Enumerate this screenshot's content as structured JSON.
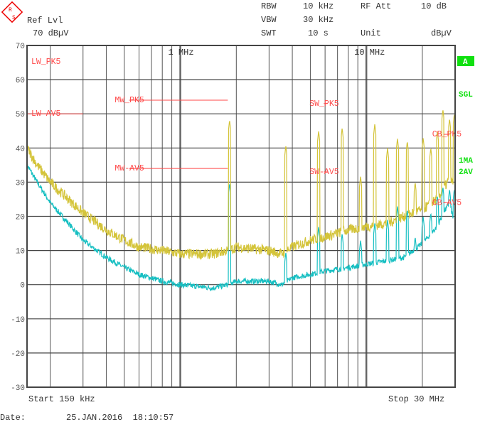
{
  "header": {
    "ref_lvl_label": "Ref Lvl",
    "ref_lvl_value": "70 dBµV",
    "rbw_label": "RBW",
    "rbw_value": "10 kHz",
    "vbw_label": "VBW",
    "vbw_value": "30 kHz",
    "swt_label": "SWT",
    "swt_value": "10 s",
    "rf_att_label": "RF Att",
    "rf_att_value": "10 dB",
    "unit_label": "Unit",
    "unit_value": "dBµV",
    "logo": "R&S"
  },
  "side_labels": {
    "trace_a": "A",
    "sweep": "SGL",
    "trace1": "1MA",
    "trace2": "2AV"
  },
  "footer": {
    "start": "Start 150 kHz",
    "stop": "Stop 30 MHz",
    "date_label": "Date:",
    "date_value": "25.JAN.2016  18:10:57"
  },
  "colors": {
    "peak_trace": "#d4c43a",
    "average_trace": "#17bfc2",
    "limit_lines": "#ff4a4a",
    "grid": "#444444",
    "status": "#10e010"
  },
  "chart_data": {
    "type": "line",
    "x_scale": "log",
    "xlim_mhz": [
      0.15,
      30
    ],
    "ylim": [
      -30,
      70
    ],
    "yticks": [
      "70",
      "60",
      "50",
      "40",
      "30",
      "20",
      "10",
      "0",
      "-10",
      "-20",
      "-30"
    ],
    "x_tick_labels": [
      {
        "f": 1,
        "label": "1 MHz"
      },
      {
        "f": 10,
        "label": "10 MHz"
      }
    ],
    "grid": true,
    "limit_lines": [
      {
        "name": "LW_PK5",
        "f": [
          0.15,
          0.3
        ],
        "level": 70
      },
      {
        "name": "LW-AV5",
        "f": [
          0.15,
          0.3
        ],
        "level": 50
      },
      {
        "name": "MW_PK5",
        "f": [
          0.53,
          1.8
        ],
        "level": 54
      },
      {
        "name": "MW-AV5",
        "f": [
          0.53,
          1.8
        ],
        "level": 34
      },
      {
        "name": "SW_PK5",
        "f": [
          5.9,
          6.2
        ],
        "level": 53
      },
      {
        "name": "SW-AV5",
        "f": [
          5.9,
          6.2
        ],
        "level": 33
      },
      {
        "name": "CB_PK5",
        "f": [
          26,
          28
        ],
        "level": 44
      },
      {
        "name": "CB-AV5",
        "f": [
          26,
          28
        ],
        "level": 24
      }
    ],
    "series": [
      {
        "trace": "1MA",
        "floor": [
          [
            0.15,
            40
          ],
          [
            0.17,
            35
          ],
          [
            0.2,
            30
          ],
          [
            0.25,
            25
          ],
          [
            0.3,
            21
          ],
          [
            0.4,
            16
          ],
          [
            0.5,
            13
          ],
          [
            0.6,
            11
          ],
          [
            0.8,
            10
          ],
          [
            1.0,
            9
          ],
          [
            1.5,
            9
          ],
          [
            1.8,
            10
          ],
          [
            2,
            11
          ],
          [
            3,
            10
          ],
          [
            3.5,
            9
          ],
          [
            4,
            11
          ],
          [
            5,
            13
          ],
          [
            6,
            14
          ],
          [
            8,
            16
          ],
          [
            10,
            17
          ],
          [
            13,
            18
          ],
          [
            16,
            20
          ],
          [
            20,
            22
          ],
          [
            24,
            25
          ],
          [
            26,
            28
          ],
          [
            28,
            31
          ],
          [
            30,
            29
          ]
        ],
        "spikes": [
          [
            1.84,
            48.2
          ],
          [
            3.69,
            40.7
          ],
          [
            5.54,
            45
          ],
          [
            7.41,
            45.9
          ],
          [
            9.31,
            31.7
          ],
          [
            11.1,
            47
          ],
          [
            13.0,
            40
          ],
          [
            14.7,
            42.8
          ],
          [
            16.6,
            42
          ],
          [
            18.3,
            30
          ],
          [
            20.2,
            43
          ],
          [
            22.2,
            40
          ],
          [
            24.1,
            45
          ],
          [
            25.8,
            51.3
          ],
          [
            28.0,
            48.6
          ],
          [
            29.7,
            50
          ]
        ]
      },
      {
        "trace": "2AV",
        "floor": [
          [
            0.15,
            35
          ],
          [
            0.17,
            30
          ],
          [
            0.2,
            24
          ],
          [
            0.25,
            18
          ],
          [
            0.3,
            13
          ],
          [
            0.4,
            8
          ],
          [
            0.5,
            5
          ],
          [
            0.6,
            3
          ],
          [
            0.8,
            1
          ],
          [
            1.0,
            0
          ],
          [
            1.5,
            -1
          ],
          [
            1.8,
            0
          ],
          [
            2,
            1
          ],
          [
            3,
            1
          ],
          [
            3.5,
            0
          ],
          [
            4,
            2
          ],
          [
            5,
            3
          ],
          [
            6,
            4
          ],
          [
            8,
            5
          ],
          [
            10,
            6
          ],
          [
            13,
            7
          ],
          [
            16,
            8
          ],
          [
            20,
            12
          ],
          [
            24,
            17
          ],
          [
            26,
            21
          ],
          [
            28,
            24
          ],
          [
            30,
            17
          ]
        ],
        "spikes": [
          [
            1.84,
            29.7
          ],
          [
            3.69,
            9.5
          ],
          [
            5.54,
            17
          ],
          [
            7.41,
            15
          ],
          [
            9.31,
            13
          ],
          [
            11.1,
            18
          ],
          [
            13.0,
            19
          ],
          [
            14.7,
            23
          ],
          [
            16.6,
            22
          ],
          [
            18.3,
            14
          ],
          [
            20.2,
            20
          ],
          [
            22.2,
            21
          ],
          [
            24.1,
            26
          ],
          [
            25.8,
            28.6
          ],
          [
            28.0,
            28
          ],
          [
            29.7,
            28
          ]
        ]
      }
    ]
  }
}
